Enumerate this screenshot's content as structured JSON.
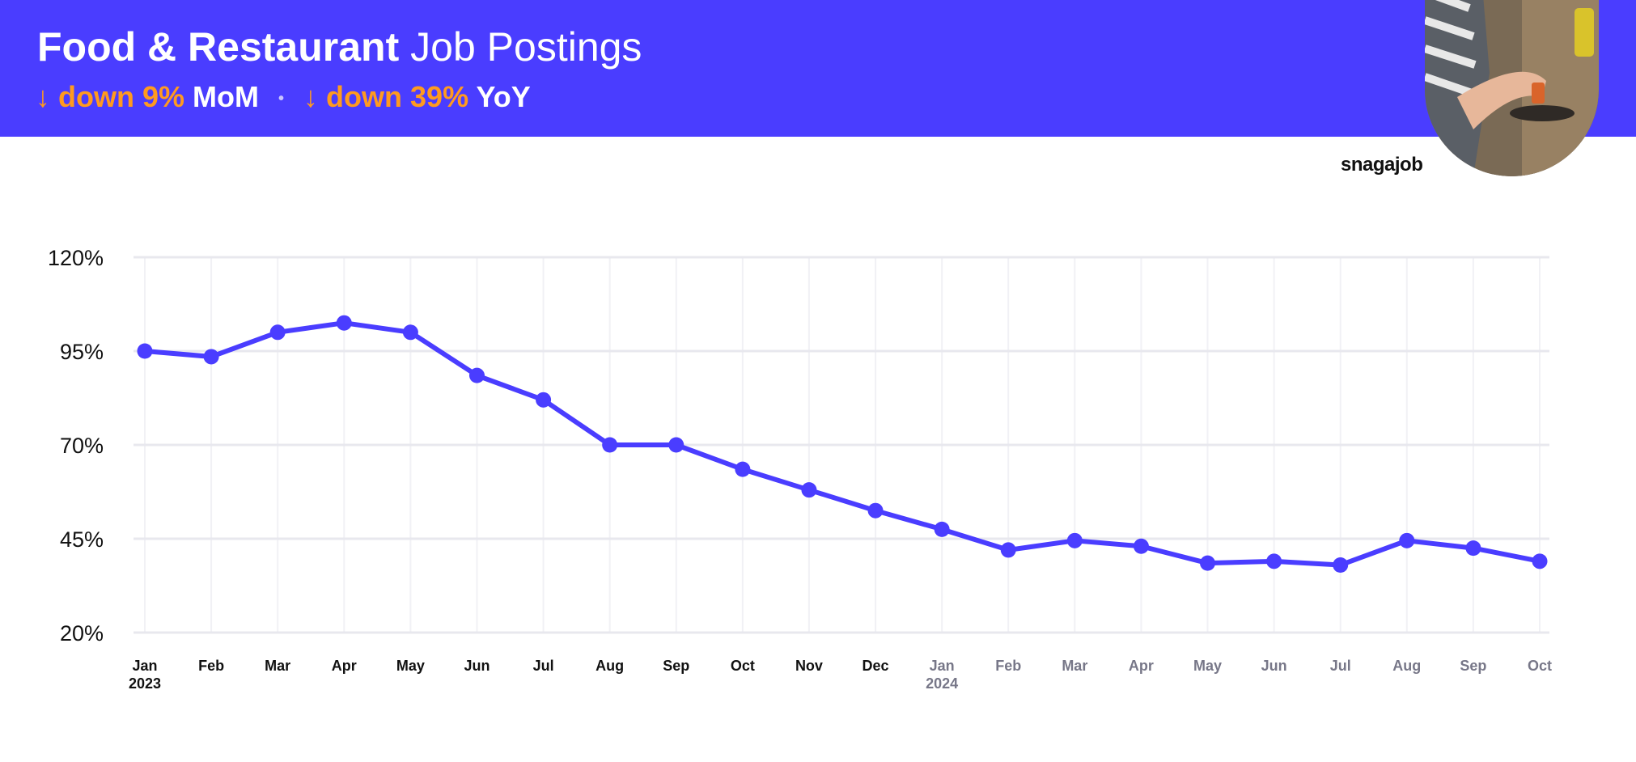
{
  "header": {
    "title_bold": "Food & Restaurant",
    "title_light": "Job Postings",
    "mom_value": "↓ down 9%",
    "mom_label": "MoM",
    "yoy_value": "↓ down 39%",
    "yoy_label": "YoY",
    "separator": "•"
  },
  "brand": {
    "name": "snagajob"
  },
  "photo": {
    "icon": "barista-photo"
  },
  "colors": {
    "banner": "#4a3dff",
    "accent": "#ff9a1f",
    "line": "#4a3dff",
    "grid": "#e8e8ee",
    "tick_2023": "#111111",
    "tick_2024": "#777788"
  },
  "chart_data": {
    "type": "line",
    "title": "",
    "xlabel": "",
    "ylabel": "",
    "ylim": [
      20,
      120
    ],
    "yticks": [
      "120%",
      "95%",
      "70%",
      "45%",
      "20%"
    ],
    "ytick_values": [
      120,
      95,
      70,
      45,
      20
    ],
    "grid": true,
    "legend": "none",
    "categories": [
      "Jan",
      "Feb",
      "Mar",
      "Apr",
      "May",
      "Jun",
      "Jul",
      "Aug",
      "Sep",
      "Oct",
      "Nov",
      "Dec",
      "Jan",
      "Feb",
      "Mar",
      "Apr",
      "May",
      "Jun",
      "Jul",
      "Aug",
      "Sep",
      "Oct"
    ],
    "year_labels": [
      "2023",
      "",
      "",
      "",
      "",
      "",
      "",
      "",
      "",
      "",
      "",
      "",
      "2024",
      "",
      "",
      "",
      "",
      "",
      "",
      "",
      "",
      ""
    ],
    "series": [
      {
        "values": [
          95,
          93.5,
          100,
          102.5,
          100,
          88.5,
          82,
          70,
          70,
          63.5,
          58,
          52.5,
          47.5,
          42,
          44.5,
          43,
          38.5,
          39,
          38,
          44.5,
          42.5,
          39
        ]
      }
    ]
  }
}
